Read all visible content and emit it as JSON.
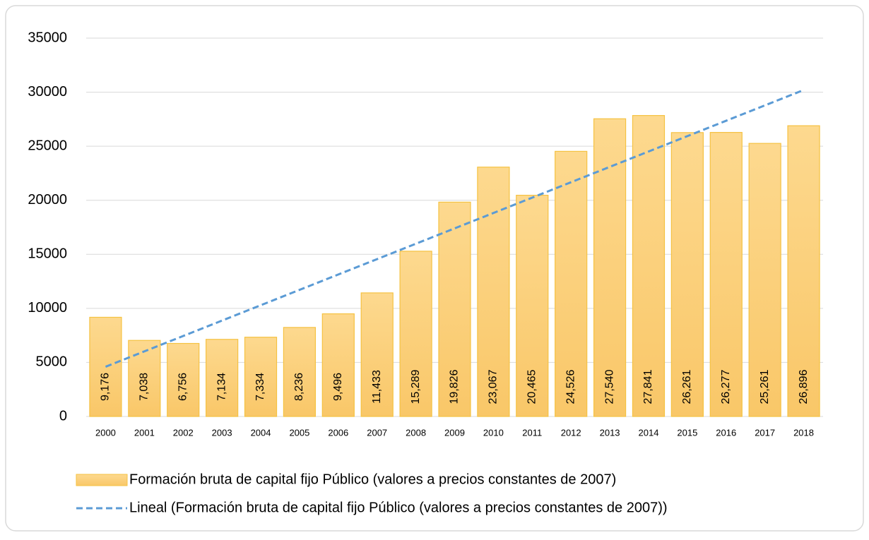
{
  "chart_data": {
    "type": "bar",
    "categories": [
      "2000",
      "2001",
      "2002",
      "2003",
      "2004",
      "2005",
      "2006",
      "2007",
      "2008",
      "2009",
      "2010",
      "2011",
      "2012",
      "2013",
      "2014",
      "2015",
      "2016",
      "2017",
      "2018"
    ],
    "series": [
      {
        "name": "Formación bruta de capital fijo Público (valores a precios constantes de 2007)",
        "color": "#fcd98c",
        "values": [
          9176,
          7038,
          6756,
          7134,
          7334,
          8236,
          9496,
          11433,
          15289,
          19826,
          23067,
          20465,
          24526,
          27540,
          27841,
          26261,
          26277,
          25261,
          26896
        ],
        "value_labels": [
          "9,176",
          "7,038",
          "6,756",
          "7,134",
          "7,334",
          "8,236",
          "9,496",
          "11,433",
          "15,289",
          "19,826",
          "23,067",
          "20,465",
          "24,526",
          "27,540",
          "27,841",
          "26,261",
          "26,277",
          "25,261",
          "26,896"
        ]
      },
      {
        "name": "Lineal (Formación bruta de capital fijo Público (valores a precios constantes de 2007))",
        "type": "line",
        "color": "#5b9bd5",
        "dashed": true,
        "values": [
          4600,
          6022,
          7444,
          8867,
          10289,
          11711,
          13133,
          14556,
          15978,
          17400,
          18822,
          20244,
          21667,
          23089,
          24511,
          25933,
          27356,
          28778,
          30200
        ]
      }
    ],
    "ylim": [
      0,
      35000
    ],
    "yticks": [
      0,
      5000,
      10000,
      15000,
      20000,
      25000,
      30000,
      35000
    ],
    "grid": true,
    "legend": "bottom"
  }
}
